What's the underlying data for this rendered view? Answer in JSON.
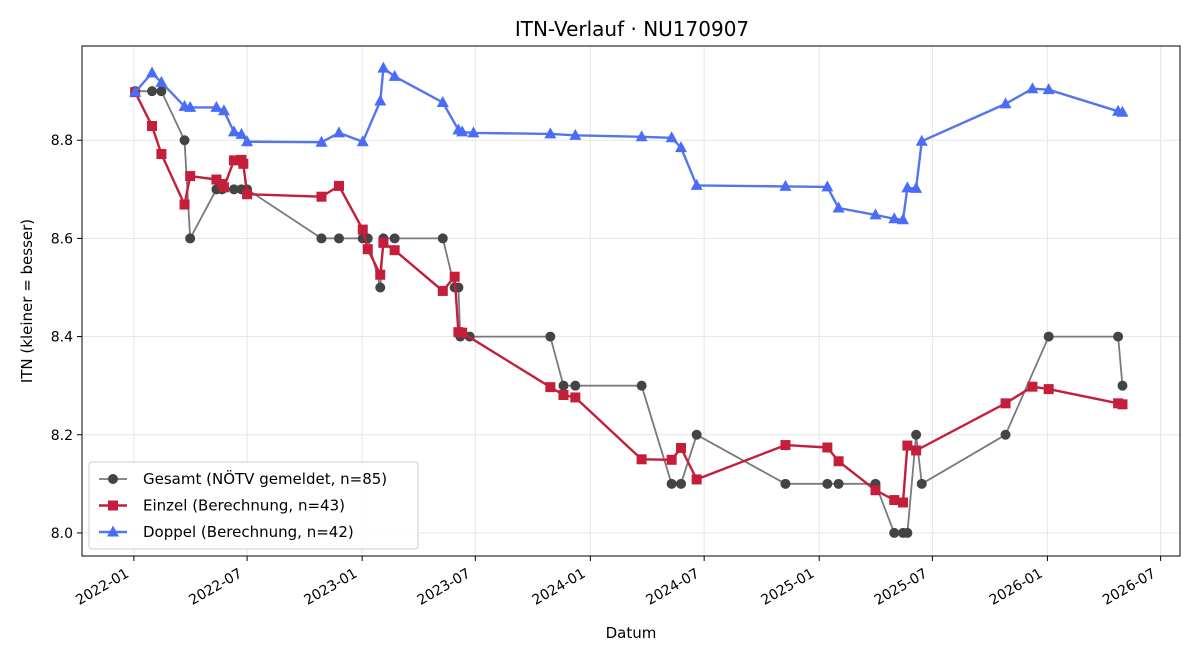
{
  "chart_data": {
    "type": "line",
    "title": "ITN-Verlauf · NU170907",
    "xlabel": "Datum",
    "ylabel": "ITN  (kleiner = besser)",
    "x_type": "date",
    "xlim": [
      "2021-10-10",
      "2026-08-01"
    ],
    "ylim": [
      7.953,
      8.992
    ],
    "x_ticks": [
      "2022-01-01",
      "2022-07-01",
      "2023-01-01",
      "2023-07-01",
      "2024-01-01",
      "2024-07-01",
      "2025-01-01",
      "2025-07-01",
      "2026-01-01",
      "2026-07-01"
    ],
    "x_tick_labels": [
      "2022-01",
      "2022-07",
      "2023-01",
      "2023-07",
      "2024-01",
      "2024-07",
      "2025-01",
      "2025-07",
      "2026-01",
      "2026-07"
    ],
    "y_ticks": [
      8.0,
      8.2,
      8.4,
      8.6,
      8.8
    ],
    "y_tick_labels": [
      "8.0",
      "8.2",
      "8.4",
      "8.6",
      "8.8"
    ],
    "grid": true,
    "legend_position": "bottom-left",
    "series": [
      {
        "name": "Gesamt (NÖTV gemeldet, n=85)",
        "color": "#444444",
        "line_color": "#7a7a7a",
        "marker": "circle",
        "points": [
          [
            "2022-01-03",
            8.9
          ],
          [
            "2022-01-30",
            8.9
          ],
          [
            "2022-02-14",
            8.9
          ],
          [
            "2022-03-23",
            8.8
          ],
          [
            "2022-04-01",
            8.6
          ],
          [
            "2022-05-13",
            8.7
          ],
          [
            "2022-05-22",
            8.7
          ],
          [
            "2022-06-10",
            8.7
          ],
          [
            "2022-06-22",
            8.7
          ],
          [
            "2022-07-01",
            8.7
          ],
          [
            "2022-10-28",
            8.6
          ],
          [
            "2022-11-25",
            8.6
          ],
          [
            "2023-01-02",
            8.6
          ],
          [
            "2023-01-10",
            8.6
          ],
          [
            "2023-01-30",
            8.5
          ],
          [
            "2023-02-04",
            8.6
          ],
          [
            "2023-02-22",
            8.6
          ],
          [
            "2023-05-10",
            8.6
          ],
          [
            "2023-05-29",
            8.5
          ],
          [
            "2023-06-04",
            8.5
          ],
          [
            "2023-06-07",
            8.4
          ],
          [
            "2023-06-22",
            8.4
          ],
          [
            "2023-10-29",
            8.4
          ],
          [
            "2023-11-19",
            8.3
          ],
          [
            "2023-12-08",
            8.3
          ],
          [
            "2024-03-23",
            8.3
          ],
          [
            "2024-05-10",
            8.1
          ],
          [
            "2024-05-25",
            8.1
          ],
          [
            "2024-06-19",
            8.2
          ],
          [
            "2024-11-08",
            8.1
          ],
          [
            "2025-01-14",
            8.1
          ],
          [
            "2025-02-01",
            8.1
          ],
          [
            "2025-04-01",
            8.1
          ],
          [
            "2025-05-01",
            8.0
          ],
          [
            "2025-05-15",
            8.0
          ],
          [
            "2025-05-22",
            8.0
          ],
          [
            "2025-06-05",
            8.2
          ],
          [
            "2025-06-14",
            8.1
          ],
          [
            "2025-10-26",
            8.2
          ],
          [
            "2026-01-03",
            8.4
          ],
          [
            "2026-04-24",
            8.4
          ],
          [
            "2026-05-01",
            8.3
          ]
        ]
      },
      {
        "name": "Einzel (Berechnung, n=43)",
        "color": "#c41e3a",
        "line_color": "#c41e3a",
        "marker": "square",
        "points": [
          [
            "2022-01-03",
            8.898
          ],
          [
            "2022-01-30",
            8.829
          ],
          [
            "2022-02-14",
            8.772
          ],
          [
            "2022-03-23",
            8.669
          ],
          [
            "2022-04-01",
            8.727
          ],
          [
            "2022-05-13",
            8.72
          ],
          [
            "2022-05-22",
            8.711
          ],
          [
            "2022-05-25",
            8.704
          ],
          [
            "2022-06-10",
            8.759
          ],
          [
            "2022-06-22",
            8.76
          ],
          [
            "2022-06-25",
            8.752
          ],
          [
            "2022-07-01",
            8.69
          ],
          [
            "2022-10-28",
            8.685
          ],
          [
            "2022-11-25",
            8.707
          ],
          [
            "2023-01-02",
            8.618
          ],
          [
            "2023-01-10",
            8.578
          ],
          [
            "2023-01-30",
            8.526
          ],
          [
            "2023-02-04",
            8.591
          ],
          [
            "2023-02-22",
            8.576
          ],
          [
            "2023-05-10",
            8.493
          ],
          [
            "2023-05-29",
            8.522
          ],
          [
            "2023-06-04",
            8.409
          ],
          [
            "2023-06-10",
            8.408
          ],
          [
            "2023-10-29",
            8.297
          ],
          [
            "2023-11-19",
            8.281
          ],
          [
            "2023-12-08",
            8.276
          ],
          [
            "2024-03-23",
            8.15
          ],
          [
            "2024-05-10",
            8.149
          ],
          [
            "2024-05-25",
            8.173
          ],
          [
            "2024-06-19",
            8.109
          ],
          [
            "2024-11-08",
            8.179
          ],
          [
            "2025-01-14",
            8.174
          ],
          [
            "2025-02-01",
            8.146
          ],
          [
            "2025-04-01",
            8.087
          ],
          [
            "2025-05-01",
            8.067
          ],
          [
            "2025-05-15",
            8.062
          ],
          [
            "2025-05-22",
            8.178
          ],
          [
            "2025-06-05",
            8.168
          ],
          [
            "2025-10-26",
            8.264
          ],
          [
            "2025-12-08",
            8.298
          ],
          [
            "2026-01-03",
            8.293
          ],
          [
            "2026-04-24",
            8.264
          ],
          [
            "2026-05-01",
            8.262
          ]
        ]
      },
      {
        "name": "Doppel (Berechnung, n=42)",
        "color": "#4a6cf7",
        "line_color": "#5575ef",
        "marker": "triangle",
        "points": [
          [
            "2022-01-03",
            8.898
          ],
          [
            "2022-01-30",
            8.937
          ],
          [
            "2022-02-14",
            8.918
          ],
          [
            "2022-03-23",
            8.869
          ],
          [
            "2022-04-01",
            8.867
          ],
          [
            "2022-05-13",
            8.867
          ],
          [
            "2022-05-25",
            8.86
          ],
          [
            "2022-06-10",
            8.817
          ],
          [
            "2022-06-22",
            8.812
          ],
          [
            "2022-07-01",
            8.797
          ],
          [
            "2022-10-28",
            8.796
          ],
          [
            "2022-11-25",
            8.815
          ],
          [
            "2023-01-02",
            8.797
          ],
          [
            "2023-01-30",
            8.88
          ],
          [
            "2023-02-04",
            8.947
          ],
          [
            "2023-02-22",
            8.93
          ],
          [
            "2023-05-10",
            8.877
          ],
          [
            "2023-06-04",
            8.821
          ],
          [
            "2023-06-10",
            8.817
          ],
          [
            "2023-06-28",
            8.815
          ],
          [
            "2023-10-29",
            8.813
          ],
          [
            "2023-12-08",
            8.81
          ],
          [
            "2024-03-23",
            8.807
          ],
          [
            "2024-05-10",
            8.805
          ],
          [
            "2024-05-25",
            8.785
          ],
          [
            "2024-06-19",
            8.708
          ],
          [
            "2024-11-08",
            8.706
          ],
          [
            "2025-01-14",
            8.705
          ],
          [
            "2025-02-01",
            8.662
          ],
          [
            "2025-04-01",
            8.648
          ],
          [
            "2025-05-01",
            8.64
          ],
          [
            "2025-05-15",
            8.638
          ],
          [
            "2025-05-22",
            8.703
          ],
          [
            "2025-06-05",
            8.702
          ],
          [
            "2025-06-14",
            8.798
          ],
          [
            "2025-10-26",
            8.874
          ],
          [
            "2025-12-08",
            8.905
          ],
          [
            "2026-01-03",
            8.903
          ],
          [
            "2026-04-24",
            8.859
          ],
          [
            "2026-05-01",
            8.857
          ]
        ]
      }
    ]
  }
}
